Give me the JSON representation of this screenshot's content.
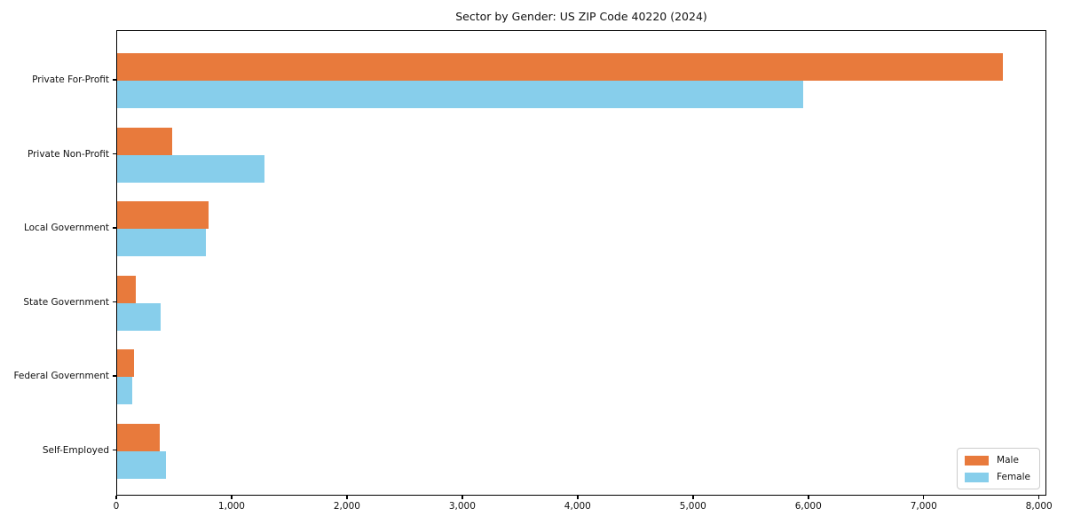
{
  "chart_data": {
    "type": "bar",
    "orientation": "horizontal",
    "title": "Sector by Gender: US ZIP Code 40220 (2024)",
    "categories": [
      "Private For-Profit",
      "Private Non-Profit",
      "Local Government",
      "State Government",
      "Federal Government",
      "Self-Employed"
    ],
    "series": [
      {
        "name": "Male",
        "color": "#E87A3C",
        "values": [
          7680,
          480,
          795,
          165,
          145,
          370
        ]
      },
      {
        "name": "Female",
        "color": "#87CEEB",
        "values": [
          5950,
          1280,
          770,
          380,
          130,
          420
        ]
      }
    ],
    "xlabel": "",
    "ylabel": "",
    "xlim": [
      0,
      8064
    ],
    "xticks": [
      0,
      1000,
      2000,
      3000,
      4000,
      5000,
      6000,
      7000,
      8000
    ],
    "xtick_labels": [
      "0",
      "1,000",
      "2,000",
      "3,000",
      "4,000",
      "5,000",
      "6,000",
      "7,000",
      "8,000"
    ],
    "grid": false,
    "legend": {
      "position": "lower right",
      "entries": [
        "Male",
        "Female"
      ]
    }
  }
}
